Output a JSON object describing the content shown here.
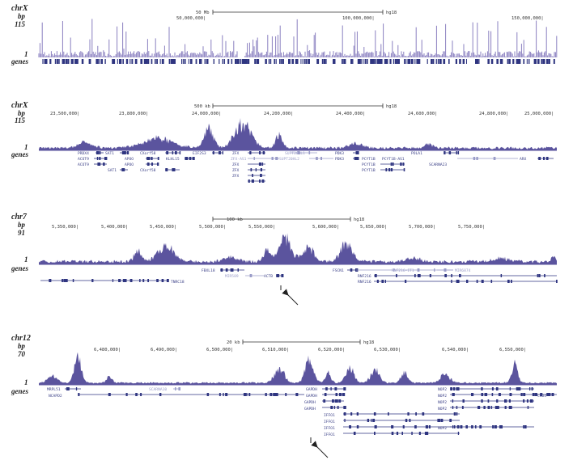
{
  "colors": {
    "signal": "#5b549e",
    "signal_light": "#8a80c0",
    "gene": "#2f3580",
    "gene_light": "#9a9cc8",
    "axis": "#333333"
  },
  "panels": [
    {
      "id": "chrX-overview",
      "chrom": "chrX",
      "bp_label": "bp",
      "max": "115",
      "min": "1",
      "genes_label": "genes",
      "scale_label": "50 Mb",
      "assembly": "hg18",
      "ticks": [
        "50,000,000|",
        "100,000,000|",
        "150,000,000|"
      ],
      "gene_names": [],
      "arrow": false
    },
    {
      "id": "chrX-region",
      "chrom": "chrX",
      "bp_label": "bp",
      "max": "115",
      "min": "1",
      "genes_label": "genes",
      "scale_label": "500 kb",
      "assembly": "hg18",
      "ticks": [
        "23,500,000|",
        "23,800,000|",
        "24,000,000|",
        "24,200,000|",
        "24,400,000|",
        "24,600,000|",
        "24,800,000|",
        "25,000,000|"
      ],
      "gene_names": [
        "PRDX4",
        "ACOT9",
        "ACOT9",
        "SAT1",
        "SAT1",
        "APOO",
        "APOO",
        "CXorf58",
        "CXorf58",
        "KLHL15",
        "EIF2S3",
        "ZFX",
        "ZFX-AS1",
        "ZFX",
        "ZFX",
        "ZFX",
        "SUPT20HL1",
        "SUPT20HL2",
        "PDK3",
        "PDK3",
        "PCYT1B",
        "PCYT1B-AS1",
        "PCYT1B",
        "PCYT1B",
        "SCARNA23",
        "POLA1",
        "ARX"
      ],
      "arrow": false
    },
    {
      "id": "chr7-region",
      "chrom": "chr7",
      "bp_label": "bp",
      "max": "91",
      "min": "1",
      "genes_label": "genes",
      "scale_label": "100 kb",
      "assembly": "hg18",
      "ticks": [
        "5,350,000|",
        "5,400,000|",
        "5,450,000|",
        "5,500,000|",
        "5,550,000|",
        "5,600,000|",
        "5,650,000|",
        "5,700,000|",
        "5,750,000|"
      ],
      "gene_names": [
        "FBXL18",
        "MIR589",
        "ACTB",
        "FSCN1",
        "RNF216-IT1",
        "MIR6874",
        "TNRC18",
        "RNF216",
        "RNF216"
      ],
      "arrow": true
    },
    {
      "id": "chr12-region",
      "chrom": "chr12",
      "bp_label": "bp",
      "max": "70",
      "min": "1",
      "genes_label": "genes",
      "scale_label": "20 kb",
      "assembly": "hg18",
      "ticks": [
        "6,480,000|",
        "6,490,000|",
        "6,500,000|",
        "6,510,000|",
        "6,520,000|",
        "6,530,000|",
        "6,540,000|",
        "6,550,000|"
      ],
      "gene_names": [
        "MRPL51",
        "NCAPD2",
        "SCARNA10",
        "GAPDH",
        "GAPDH",
        "GAPDH",
        "GAPDH",
        "IFFO1",
        "IFFO1",
        "IFFO1",
        "IFFO1",
        "NOP2",
        "NOP2",
        "NOP2",
        "NOP2",
        "NOP2",
        "CHD4"
      ],
      "arrow": true
    }
  ]
}
